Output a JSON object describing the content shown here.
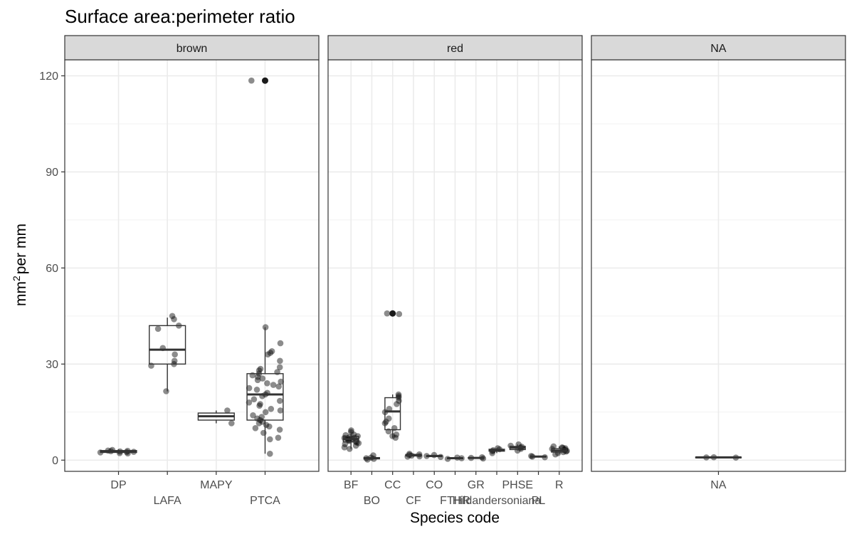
{
  "chart_data": {
    "type": "boxplot",
    "title": "Surface area:perimeter ratio",
    "xlabel": "Species code",
    "ylabel": {
      "base": "mm",
      "sup": "2",
      "rest": "per mm"
    },
    "ylim": [
      -3.5,
      125
    ],
    "yticks": [
      0,
      30,
      60,
      90,
      120
    ],
    "grid": true,
    "facets": [
      {
        "label": "brown",
        "categories": [
          "DP",
          "LAFA",
          "MAPY",
          "PTCA"
        ],
        "boxes": [
          {
            "category": "DP",
            "q1": 2.4,
            "median": 2.6,
            "q3": 3.0,
            "whisker_low": 2.0,
            "whisker_high": 3.4
          },
          {
            "category": "LAFA",
            "q1": 30,
            "median": 34.5,
            "q3": 42,
            "whisker_low": 21.5,
            "whisker_high": 44.5
          },
          {
            "category": "MAPY",
            "q1": 12.5,
            "median": 13.7,
            "q3": 14.7,
            "whisker_low": 11.5,
            "whisker_high": 15.5
          },
          {
            "category": "PTCA",
            "q1": 12.5,
            "median": 20.5,
            "q3": 27,
            "whisker_low": 2,
            "whisker_high": 41.5
          }
        ],
        "outliers": [
          {
            "category": "PTCA",
            "value": 118.5
          }
        ],
        "points": {
          "DP": [
            2.4,
            2.6,
            2.8,
            3.0,
            2.5,
            2.2,
            3.2,
            2.9,
            2.1,
            2.7
          ],
          "LAFA": [
            44,
            45,
            42,
            41,
            35,
            33,
            31,
            29.5,
            30,
            21.5
          ],
          "MAPY": [
            11.5,
            15.5
          ],
          "PTCA": [
            118.5,
            41.5,
            36.5,
            34,
            33.5,
            33,
            31,
            29,
            28.5,
            28,
            27.5,
            27,
            26.5,
            26,
            25.5,
            25,
            24.5,
            24,
            23.5,
            23,
            22.5,
            22,
            21,
            20.5,
            20,
            19,
            18.5,
            18,
            17.5,
            17,
            16,
            15.5,
            15,
            14,
            13.5,
            13,
            12.5,
            12,
            11.5,
            11,
            10.5,
            10,
            9.5,
            8.5,
            7,
            6.5,
            2
          ]
        }
      },
      {
        "label": "red",
        "categories": [
          "BF",
          "BO",
          "CC",
          "CF",
          "CO",
          "FTHR",
          "GR",
          "Hildandersoniana",
          "PHSE",
          "PL",
          "R"
        ],
        "boxes": [
          {
            "category": "BF",
            "q1": 5.7,
            "median": 6.6,
            "q3": 7.4,
            "whisker_low": 3.5,
            "whisker_high": 9.3
          },
          {
            "category": "BO",
            "q1": 0.4,
            "median": 0.6,
            "q3": 0.8,
            "whisker_low": 0.2,
            "whisker_high": 1.5
          },
          {
            "category": "CC",
            "q1": 9.5,
            "median": 15.2,
            "q3": 19.5,
            "whisker_low": 7,
            "whisker_high": 20.5
          },
          {
            "category": "CF",
            "q1": 1.3,
            "median": 1.6,
            "q3": 1.8,
            "whisker_low": 1.1,
            "whisker_high": 2.0
          },
          {
            "category": "CO",
            "q1": 1.1,
            "median": 1.3,
            "q3": 1.4,
            "whisker_low": 1.0,
            "whisker_high": 1.6
          },
          {
            "category": "FTHR",
            "q1": 0.5,
            "median": 0.6,
            "q3": 0.7,
            "whisker_low": 0.4,
            "whisker_high": 0.8
          },
          {
            "category": "GR",
            "q1": 0.6,
            "median": 0.7,
            "q3": 0.8,
            "whisker_low": 0.5,
            "whisker_high": 0.9
          },
          {
            "category": "Hildandersoniana",
            "q1": 2.8,
            "median": 3.1,
            "q3": 3.4,
            "whisker_low": 2.2,
            "whisker_high": 3.7
          },
          {
            "category": "PHSE",
            "q1": 3.3,
            "median": 3.9,
            "q3": 4.3,
            "whisker_low": 3.0,
            "whisker_high": 4.9
          },
          {
            "category": "PL",
            "q1": 1.0,
            "median": 1.1,
            "q3": 1.2,
            "whisker_low": 0.9,
            "whisker_high": 1.3
          },
          {
            "category": "R",
            "q1": 2.5,
            "median": 3.0,
            "q3": 3.6,
            "whisker_low": 1.8,
            "whisker_high": 4.3
          }
        ],
        "outliers": [
          {
            "category": "CC",
            "value": 45.8
          }
        ],
        "points": {
          "BF": [
            9.3,
            8.8,
            8.0,
            7.5,
            7.2,
            7.0,
            6.8,
            6.6,
            6.4,
            6.2,
            6.0,
            5.8,
            5.5,
            5.0,
            4.5,
            4.0,
            3.5,
            7.8,
            6.9,
            5.3
          ],
          "BO": [
            0.2,
            0.4,
            0.6,
            0.8,
            1.5
          ],
          "CC": [
            45.8,
            45.6,
            20.5,
            20,
            19.5,
            18.5,
            17.5,
            16,
            15,
            13,
            12,
            11.5,
            10,
            9,
            8,
            7.5,
            7
          ],
          "CF": [
            2.0,
            1.8,
            1.6,
            1.4,
            1.2,
            1.1
          ],
          "CO": [
            1.6,
            1.3,
            1.0
          ],
          "FTHR": [
            0.8,
            0.6,
            0.4
          ],
          "GR": [
            0.9,
            0.7,
            0.5
          ],
          "Hildandersoniana": [
            3.7,
            3.4,
            3.1,
            2.8,
            2.2
          ],
          "PHSE": [
            4.9,
            4.5,
            4.2,
            3.9,
            3.5,
            3.0
          ],
          "PL": [
            1.3,
            1.1,
            0.9
          ],
          "R": [
            4.3,
            4.0,
            3.7,
            3.5,
            3.3,
            3.1,
            2.9,
            2.7,
            2.5,
            2.2,
            1.8,
            3.8
          ]
        }
      },
      {
        "label": "NA",
        "categories": [
          "NA"
        ],
        "boxes": [
          {
            "category": "NA",
            "q1": 0.75,
            "median": 0.85,
            "q3": 0.95,
            "whisker_low": 0.7,
            "whisker_high": 1.0
          }
        ],
        "outliers": [],
        "points": {
          "NA": [
            0.8,
            0.9,
            0.85
          ]
        }
      }
    ]
  }
}
